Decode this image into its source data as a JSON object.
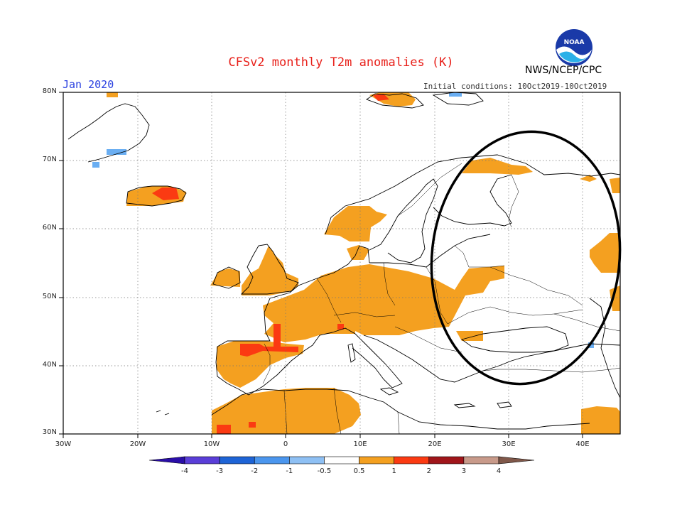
{
  "title": "CFSv2 monthly T2m anomalies (K)",
  "month": "Jan 2020",
  "agency": "NWS/NCEP/CPC",
  "logo_text": "NOAA",
  "initial_conditions": "Initial conditions: 10Oct2019-10Oct2019",
  "map": {
    "lat_labels": [
      "80N",
      "70N",
      "60N",
      "50N",
      "40N",
      "30N"
    ],
    "lon_labels": [
      "30W",
      "20W",
      "10W",
      "0",
      "10E",
      "20E",
      "30E",
      "40E"
    ],
    "extent": {
      "lon": [
        -30,
        45
      ],
      "lat": [
        30,
        80
      ]
    },
    "annotation": "black ellipse over Eastern Europe / Western Russia"
  },
  "colorbar": {
    "labels": [
      "-4",
      "-3",
      "-2",
      "-1",
      "-0.5",
      "0.5",
      "1",
      "2",
      "3",
      "4"
    ],
    "colors": [
      "#2a0ea8",
      "#5a3ed8",
      "#1e64d6",
      "#4b96ee",
      "#8ec0f4",
      "#ffffff",
      "#f4a020",
      "#fb3a12",
      "#a0151a",
      "#c89a8a",
      "#80584a"
    ]
  },
  "colors": {
    "anom_0_5_1": "#f4a020",
    "anom_1_2": "#fb3a12",
    "anom_2_3": "#b01818",
    "anom_neg": "#6aaef2",
    "coast": "#000000",
    "grid": "#777777"
  }
}
